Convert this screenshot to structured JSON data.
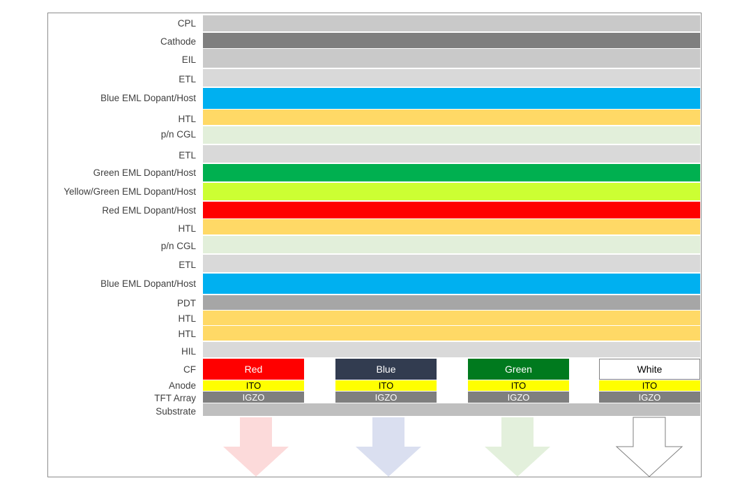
{
  "layers": [
    {
      "label": "CPL",
      "color": "#c9c9c9"
    },
    {
      "label": "Cathode",
      "color": "#7f7f7f"
    },
    {
      "label": "EIL",
      "color": "#c9c9c9"
    },
    {
      "label": "ETL",
      "color": "#d9d9d9"
    },
    {
      "label": "Blue EML Dopant/Host",
      "color": "#00b0f0"
    },
    {
      "label": "HTL",
      "color": "#ffd966"
    },
    {
      "label": "p/n CGL",
      "color": "#e2efda"
    },
    {
      "label": "ETL",
      "color": "#d9d9d9"
    },
    {
      "label": "Green EML Dopant/Host",
      "color": "#00b050"
    },
    {
      "label": "Yellow/Green EML Dopant/Host",
      "color": "#ccff33"
    },
    {
      "label": "Red EML Dopant/Host",
      "color": "#ff0000"
    },
    {
      "label": "HTL",
      "color": "#ffd966"
    },
    {
      "label": "p/n CGL",
      "color": "#e2efda"
    },
    {
      "label": "ETL",
      "color": "#d9d9d9"
    },
    {
      "label": "Blue EML Dopant/Host",
      "color": "#00b0f0"
    },
    {
      "label": "PDT",
      "color": "#a6a6a6"
    },
    {
      "label": "HTL",
      "color": "#ffd966"
    },
    {
      "label": "HTL",
      "color": "#ffd966"
    },
    {
      "label": "HIL",
      "color": "#d9d9d9"
    }
  ],
  "bottom_labels": {
    "cf": "CF",
    "anode": "Anode",
    "tft": "TFT Array",
    "substrate": "Substrate"
  },
  "substrate_color": "#bfbfbf",
  "pixels": [
    {
      "cf": "Red",
      "cf_color": "#ff0000",
      "cf_text_color": "#ffffff",
      "anode": "ITO",
      "tft": "IGZO",
      "arrow_color": "#fcdada",
      "arrow_style": "filled"
    },
    {
      "cf": "Blue",
      "cf_color": "#323c50",
      "cf_text_color": "#ffffff",
      "anode": "ITO",
      "tft": "IGZO",
      "arrow_color": "#dadff0",
      "arrow_style": "filled"
    },
    {
      "cf": "Green",
      "cf_color": "#007a1e",
      "cf_text_color": "#ffffff",
      "anode": "ITO",
      "tft": "IGZO",
      "arrow_color": "#e3f0dc",
      "arrow_style": "filled"
    },
    {
      "cf": "White",
      "cf_color": "#ffffff",
      "cf_text_color": "#000000",
      "anode": "ITO",
      "tft": "IGZO",
      "arrow_color": "#ffffff",
      "arrow_style": "outline"
    }
  ],
  "anode_color": "#ffff00",
  "tft_color": "#7f7f7f"
}
